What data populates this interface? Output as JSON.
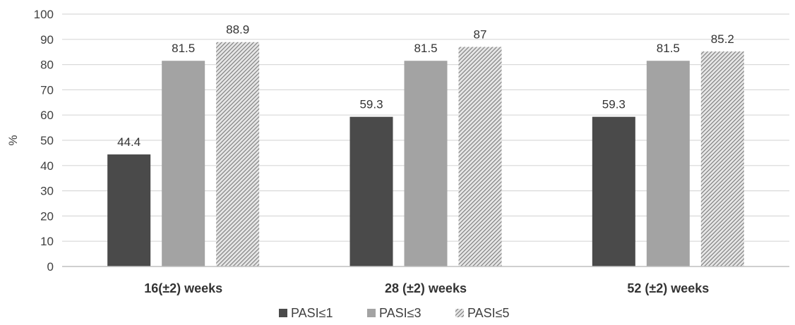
{
  "chart_data": {
    "type": "bar",
    "title": "",
    "xlabel": "",
    "ylabel": "%",
    "ylim": [
      0,
      100
    ],
    "yticks": [
      0,
      10,
      20,
      30,
      40,
      50,
      60,
      70,
      80,
      90,
      100
    ],
    "categories": [
      "16(±2) weeks",
      "28 (±2) weeks",
      "52 (±2) weeks"
    ],
    "series": [
      {
        "name": "PASI≤1",
        "values": [
          44.4,
          59.3,
          59.3
        ],
        "labels": [
          "44.4",
          "59.3",
          "59.3"
        ],
        "color": "#4a4a4a",
        "fill": "solid"
      },
      {
        "name": "PASI≤3",
        "values": [
          81.5,
          81.5,
          81.5
        ],
        "labels": [
          "81.5",
          "81.5",
          "81.5"
        ],
        "color": "#a3a3a3",
        "fill": "solid"
      },
      {
        "name": "PASI≤5",
        "values": [
          88.9,
          87,
          85.2
        ],
        "labels": [
          "88.9",
          "87",
          "85.2"
        ],
        "color": "#9a9a9a",
        "fill": "hatched"
      }
    ],
    "grid": true,
    "legend_position": "bottom"
  }
}
